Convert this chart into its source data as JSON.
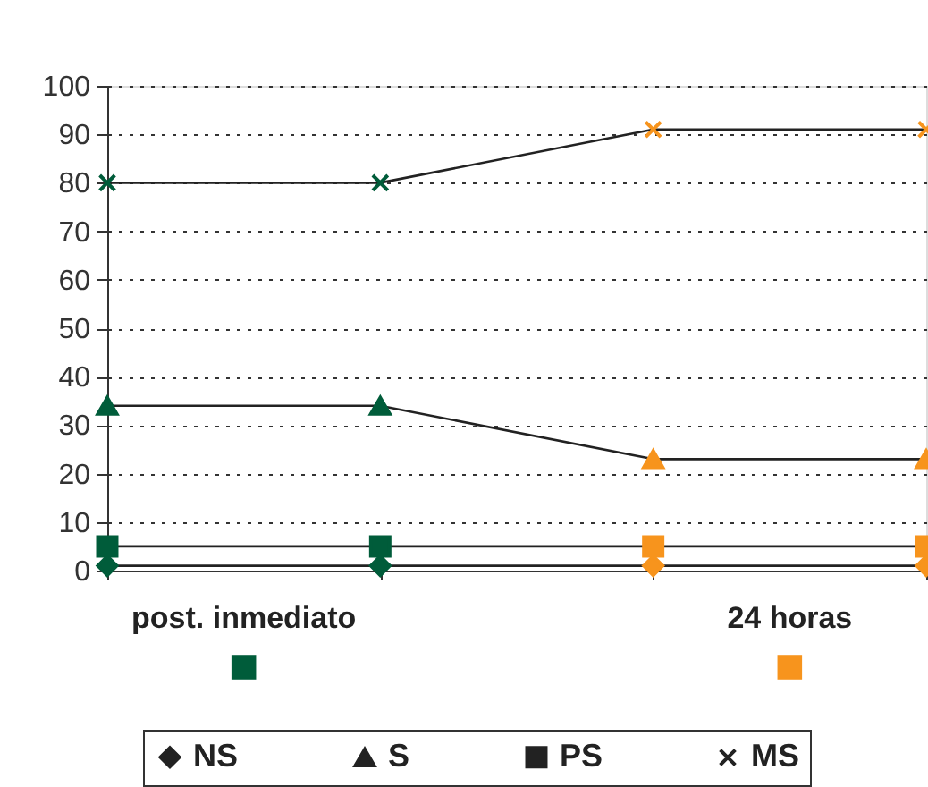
{
  "chart_data": {
    "type": "line",
    "categories": [
      null,
      null,
      null,
      null
    ],
    "series": [
      {
        "name": "NS",
        "color": "#222222",
        "marker": "diamond",
        "colors": [
          "#005c3a",
          "#005c3a",
          "#f7941d",
          "#f7941d"
        ],
        "values": [
          1,
          1,
          1,
          1
        ]
      },
      {
        "name": "S",
        "color": "#222222",
        "marker": "triangle",
        "colors": [
          "#005c3a",
          "#005c3a",
          "#f7941d",
          "#f7941d"
        ],
        "values": [
          34,
          34,
          23,
          23
        ]
      },
      {
        "name": "PS",
        "color": "#222222",
        "marker": "square",
        "colors": [
          "#005c3a",
          "#005c3a",
          "#f7941d",
          "#f7941d"
        ],
        "values": [
          5,
          5,
          5,
          5
        ]
      },
      {
        "name": "MS",
        "color": "#222222",
        "marker": "cross",
        "colors": [
          "#005c3a",
          "#005c3a",
          "#f7941d",
          "#f7941d"
        ],
        "values": [
          80,
          80,
          91,
          91
        ]
      }
    ],
    "annotations": [
      "post. inmediato",
      "24 horas"
    ],
    "ylim": [
      0,
      100
    ],
    "yticks": [
      0,
      10,
      20,
      30,
      40,
      50,
      60,
      70,
      80,
      90,
      100
    ],
    "grid": "y",
    "legend": "bottom",
    "tick_labels": "y",
    "line_style": "solid"
  }
}
